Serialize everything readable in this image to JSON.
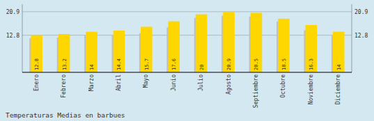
{
  "chart_data": {
    "type": "bar",
    "title": "Temperaturas Medias en barbues",
    "categories": [
      "Enero",
      "Febrero",
      "Marzo",
      "Abril",
      "Mayo",
      "Junio",
      "Julio",
      "Agosto",
      "Septiembre",
      "Octubre",
      "Noviembre",
      "Diciembre"
    ],
    "series": [
      {
        "color": "#C0C0C0",
        "values": [
          11.8,
          12.0,
          12.8,
          12.8,
          13.5,
          15.5,
          18.8,
          19.5,
          19.2,
          17.5,
          14.5,
          12.8
        ]
      },
      {
        "color": "#FFD700",
        "data_labels": true,
        "values": [
          12.8,
          13.2,
          14.0,
          14.4,
          15.7,
          17.6,
          20.0,
          20.9,
          20.5,
          18.5,
          16.3,
          14.0
        ]
      }
    ],
    "ylim": [
      0,
      23.5
    ],
    "yticks": [
      12.8,
      20.9
    ],
    "y2lim": [
      0,
      23.5
    ],
    "y2ticks": [
      12.8,
      20.9
    ],
    "grid": true
  }
}
